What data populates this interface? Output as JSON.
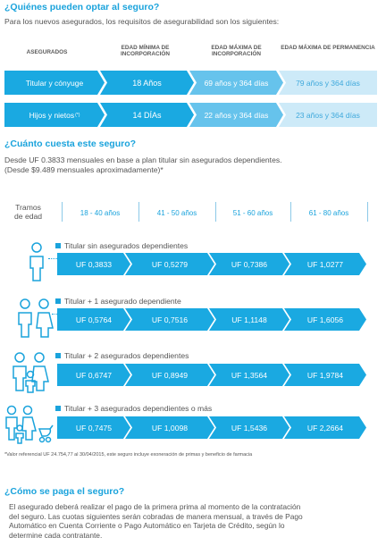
{
  "section1": {
    "title": "¿Quiénes pueden optar al seguro?",
    "intro": "Para los nuevos asegurados, los requisitos de asegurabilidad son los siguientes:",
    "headers": [
      "ASEGURADOS",
      "EDAD MÍNIMA DE INCORPORACIÓN",
      "EDAD MÁXIMA DE INCORPORACIÓN",
      "EDAD MÁXIMA DE PERMANENCIA"
    ],
    "rows": [
      {
        "insured": "Titular y cónyuge",
        "min_age": "18 Años",
        "max_inc": "69 años y 364 días",
        "max_perm": "79 años y 364 días"
      },
      {
        "insured": "Hijos y nietos",
        "insured_sup": "(*)",
        "min_age": "14 DÍAs",
        "max_inc": "22 años y 364 días",
        "max_perm": "23 años y 364 días"
      }
    ]
  },
  "section2": {
    "title": "¿Cuánto cuesta este seguro?",
    "intro_line1": "Desde UF 0.3833 mensuales en base a plan titular sin asegurados dependientes.",
    "intro_line2": "(Desde $9.489 mensuales aproximadamente)*",
    "tramos_label_1": "Tramos",
    "tramos_label_2": "de edad",
    "age_ranges": [
      "18 - 40 años",
      "41 - 50 años",
      "51 - 60 años",
      "61 - 80 años"
    ],
    "plans": [
      {
        "label": "Titular sin asegurados dependientes",
        "icon": "single-person-icon",
        "prices": [
          "UF 0,3833",
          "UF 0,5279",
          "UF 0,7386",
          "UF 1,0277"
        ]
      },
      {
        "label": "Titular + 1 asegurado dependiente",
        "icon": "two-persons-icon",
        "prices": [
          "UF 0,5764",
          "UF 0,7516",
          "UF 1,1148",
          "UF 1,6056"
        ]
      },
      {
        "label": "Titular + 2 asegurados dependientes",
        "icon": "three-persons-icon",
        "prices": [
          "UF 0,6747",
          "UF 0,8949",
          "UF 1,3564",
          "UF 1,9784"
        ]
      },
      {
        "label": "Titular + 3 asegurados dependientes o más",
        "icon": "family-icon",
        "prices": [
          "UF 0,7475",
          "UF 1,0098",
          "UF 1,5436",
          "UF 2,2664"
        ]
      }
    ],
    "footnote": "*Valor referencial UF 24.754,77 al 30/04/2015, este seguro incluye exoneración de primas y beneficio de farmacia"
  },
  "section3": {
    "title": "¿Cómo se paga el seguro?",
    "lines": [
      "El asegurado deberá realizar el pago de la primera prima al momento de la contratación",
      "del seguro. Las cuotas siguientes serán cobradas de manera mensual, a través de Pago",
      "Automático en Cuenta Corriente o Pago Automático en Tarjeta de Crédito, según lo",
      "determine cada contratante."
    ]
  },
  "colors": {
    "accent": "#1aa3dc",
    "accent_mid": "#66c3ec",
    "accent_light": "#cdeaf8"
  }
}
